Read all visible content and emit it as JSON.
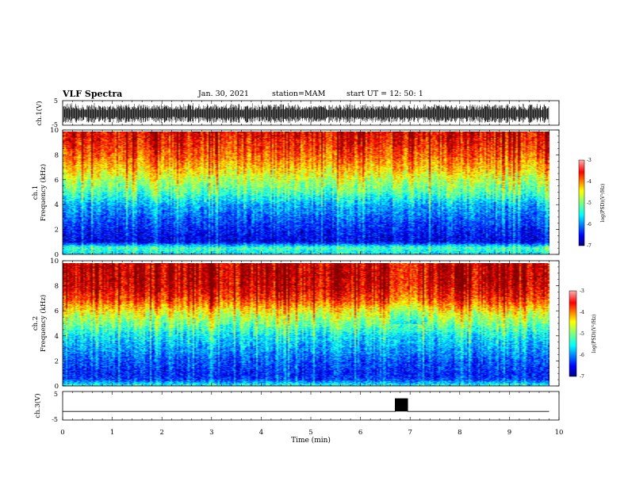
{
  "header": {
    "title": "VLF Spectra",
    "date": "Jan. 30, 2021",
    "station": "station=MAM",
    "start": "start UT =  12: 50: 1"
  },
  "panels": {
    "ch1_wave_label": "ch.1(V)",
    "ch1_spec_label1": "ch.1",
    "ch1_spec_label2": "Frequency (kHz)",
    "ch2_spec_label1": "ch.2",
    "ch2_spec_label2": "Frequency (kHz)",
    "ch3_wave_label": "ch.3(V)",
    "xlabel": "Time (min)",
    "colorbar_label": "log(PSD)(V²/Hz)"
  },
  "chart_data": [
    {
      "type": "line",
      "name": "ch1-waveform",
      "ylabel": "ch.1(V)",
      "xlim": [
        0,
        10
      ],
      "ylim": [
        -5,
        5
      ],
      "yticks": [
        -5,
        5
      ],
      "note_series": "dense noise bursts between about -4 and +4 V over 0–9.8 min"
    },
    {
      "type": "heatmap",
      "name": "ch1-spectrogram",
      "ylabel": "Frequency (kHz)",
      "xlim": [
        0,
        9.8
      ],
      "ylim": [
        0,
        10
      ],
      "yticks": [
        0,
        2,
        4,
        6,
        8,
        10
      ],
      "colorbar": {
        "label": "log(PSD)(V²/Hz)",
        "min": -7,
        "max": -3,
        "ticks": [
          -7,
          -6,
          -5,
          -4,
          -3
        ]
      },
      "profile_freq_khz": [
        0,
        0.5,
        1,
        2,
        3,
        4,
        5,
        6,
        7,
        8,
        9,
        10
      ],
      "profile_log_psd": [
        -5.6,
        -5.2,
        -6.6,
        -6.4,
        -6.1,
        -5.8,
        -5.2,
        -4.8,
        -4.3,
        -3.9,
        -3.6,
        -3.4
      ]
    },
    {
      "type": "heatmap",
      "name": "ch2-spectrogram",
      "ylabel": "Frequency (kHz)",
      "xlim": [
        0,
        9.8
      ],
      "ylim": [
        0,
        10
      ],
      "yticks": [
        0,
        2,
        4,
        6,
        8,
        10
      ],
      "colorbar": {
        "label": "log(PSD)(V²/Hz)",
        "min": -7,
        "max": -3,
        "ticks": [
          -7,
          -6,
          -5,
          -4,
          -3
        ]
      },
      "profile_freq_khz": [
        0,
        0.5,
        1,
        2,
        3,
        4,
        5,
        6,
        7,
        8,
        9,
        10
      ],
      "profile_log_psd": [
        -5.4,
        -6.3,
        -6.4,
        -6.2,
        -5.9,
        -5.6,
        -5.1,
        -4.6,
        -3.8,
        -3.4,
        -3.3,
        -3.3
      ]
    },
    {
      "type": "line",
      "name": "ch3-waveform",
      "ylabel": "ch.3(V)",
      "xlabel": "Time (min)",
      "xlim": [
        0,
        10
      ],
      "ylim": [
        -5,
        5
      ],
      "yticks": [
        -5,
        5
      ],
      "x": [
        0,
        6.7,
        6.7,
        6.95,
        6.95,
        9.8
      ],
      "y": [
        -2,
        -2,
        2.5,
        2.5,
        -2,
        -2
      ],
      "xticks": [
        0,
        1,
        2,
        3,
        4,
        5,
        6,
        7,
        8,
        9,
        10
      ]
    }
  ],
  "colors": {
    "jet": [
      "#00007f",
      "#0000ff",
      "#007fff",
      "#00ffff",
      "#7fff7f",
      "#ffff00",
      "#ff7f00",
      "#ff0000",
      "#7f0000"
    ]
  }
}
